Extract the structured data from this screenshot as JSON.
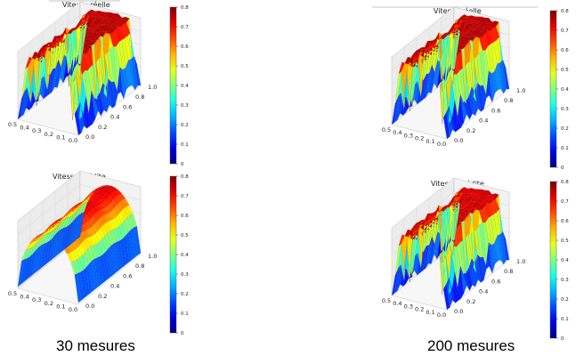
{
  "captions": [
    "30 mesures",
    "200 mesures"
  ],
  "chart_data": [
    {
      "type": "surface3d",
      "title": "Vitesse réelle",
      "x_ticks": [
        "0.0",
        "0.1",
        "0.2",
        "0.3",
        "0.4",
        "0.5"
      ],
      "y_ticks": [
        "0.0",
        "0.2",
        "0.4",
        "0.6",
        "0.8",
        "1.0"
      ],
      "colorbar": {
        "range": [
          0,
          0.8
        ],
        "ticks": [
          "0",
          "0.1",
          "0.2",
          "0.3",
          "0.4",
          "0.5",
          "0.6",
          "0.7",
          "0.8"
        ],
        "colormap": "jet"
      },
      "surface_max": 0.78,
      "shape": "jagged-plateau"
    },
    {
      "type": "surface3d",
      "title": "Vitesse prédite",
      "x_ticks": [
        "0.0",
        "0.1",
        "0.2",
        "0.3",
        "0.4",
        "0.5"
      ],
      "y_ticks": [
        "0.0",
        "0.2",
        "0.4",
        "0.6",
        "0.8",
        "1.0"
      ],
      "colorbar": {
        "range": [
          0,
          0.8
        ],
        "ticks": [
          "0",
          "0.1",
          "0.2",
          "0.3",
          "0.4",
          "0.5",
          "0.6",
          "0.7",
          "0.8"
        ],
        "colormap": "jet"
      },
      "surface_max": 0.72,
      "shape": "smooth-ridge"
    },
    {
      "type": "surface3d",
      "title": "Vitesse réelle",
      "x_ticks": [
        "0.0",
        "0.1",
        "0.2",
        "0.3",
        "0.4",
        "0.5"
      ],
      "y_ticks": [
        "0.0",
        "0.2",
        "0.4",
        "0.6",
        "0.8",
        "1.0"
      ],
      "colorbar": {
        "range": [
          0,
          0.8
        ],
        "ticks": [
          "0",
          "0.1",
          "0.2",
          "0.3",
          "0.4",
          "0.5",
          "0.6",
          "0.7",
          "0.8"
        ],
        "colormap": "jet"
      },
      "surface_max": 0.78,
      "shape": "jagged-plateau"
    },
    {
      "type": "surface3d",
      "title": "Vitesse prédite",
      "x_ticks": [
        "0.0",
        "0.1",
        "0.2",
        "0.3",
        "0.4",
        "0.5"
      ],
      "y_ticks": [
        "0.0",
        "0.2",
        "0.4",
        "0.6",
        "0.8",
        "1.0"
      ],
      "colorbar": {
        "range": [
          0,
          0.8
        ],
        "ticks": [
          "0",
          "0.1",
          "0.2",
          "0.3",
          "0.4",
          "0.5",
          "0.6",
          "0.7",
          "0.8"
        ],
        "colormap": "jet"
      },
      "surface_max": 0.76,
      "shape": "jagged-plateau"
    }
  ]
}
